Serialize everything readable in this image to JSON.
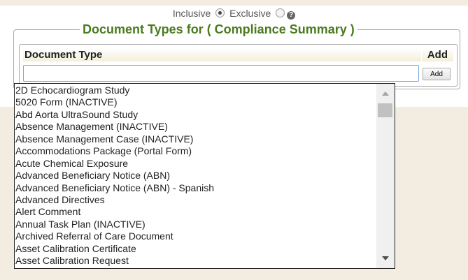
{
  "filter": {
    "inclusive_label": "Inclusive",
    "exclusive_label": "Exclusive",
    "selected": "inclusive",
    "help_icon": "question-circle-icon"
  },
  "fieldset": {
    "legend": "Document Types for ( Compliance Summary )"
  },
  "table": {
    "col_document_type": "Document Type",
    "col_add": "Add"
  },
  "input": {
    "value": "",
    "add_button": "Add"
  },
  "dropdown": {
    "items": [
      "2D Echocardiogram Study",
      "5020 Form (INACTIVE)",
      "Abd Aorta UltraSound Study",
      "Absence Management (INACTIVE)",
      "Absence Management Case (INACTIVE)",
      "Accommodations Package (Portal Form)",
      "Acute Chemical Exposure",
      "Advanced Beneficiary Notice (ABN)",
      "Advanced Beneficiary Notice (ABN) - Spanish",
      "Advanced Directives",
      "Alert Comment",
      "Annual Task Plan (INACTIVE)",
      "Archived Referral of Care Document",
      "Asset Calibration Certificate",
      "Asset Calibration Request"
    ]
  },
  "colors": {
    "legend": "#4a7b1e",
    "input_focus": "#7aa7e0",
    "background": "#f3ece0"
  }
}
